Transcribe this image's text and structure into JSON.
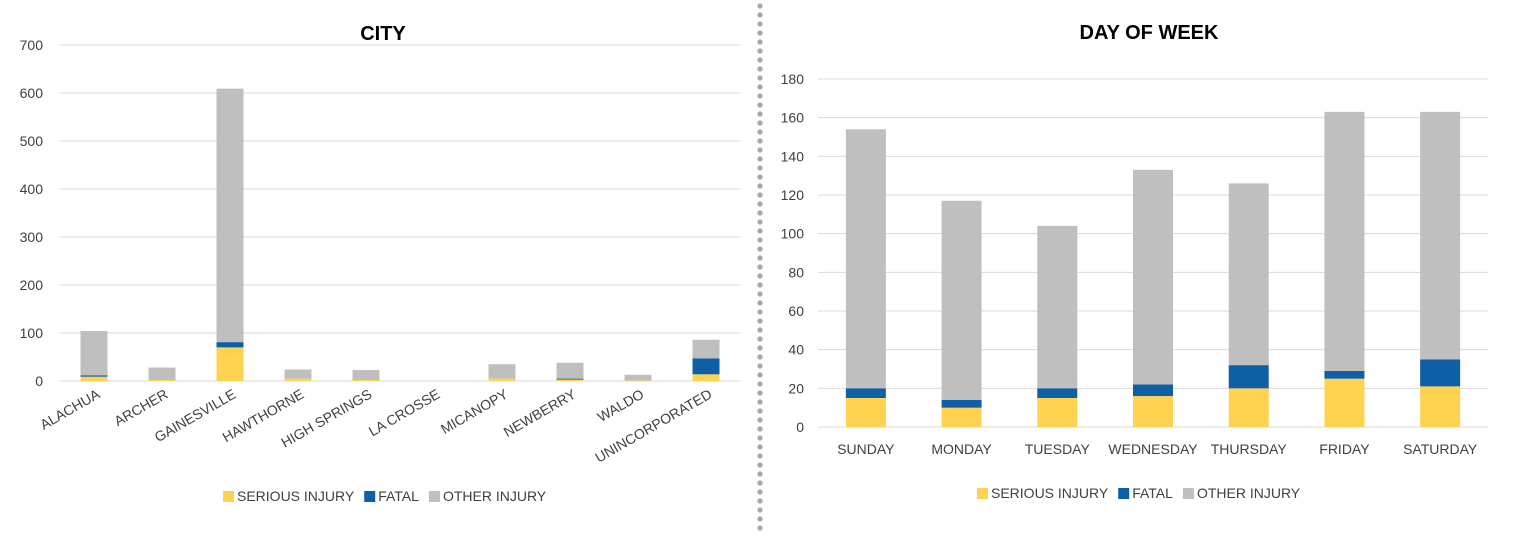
{
  "colors": {
    "serious": "#ffd34f",
    "fatal": "#0e5fa6",
    "other": "#bfbfbf"
  },
  "chart_data": [
    {
      "type": "bar",
      "stacked": true,
      "title": "CITY",
      "categories": [
        "ALACHUA",
        "ARCHER",
        "GAINESVILLE",
        "HAWTHORNE",
        "HIGH SPRINGS",
        "LA CROSSE",
        "MICANOPY",
        "NEWBERRY",
        "WALDO",
        "UNINCORPORATED"
      ],
      "series": [
        {
          "name": "SERIOUS INJURY",
          "values": [
            9,
            2,
            70,
            5,
            2,
            0,
            5,
            3,
            1,
            14
          ]
        },
        {
          "name": "FATAL",
          "values": [
            3,
            0,
            11,
            0,
            0,
            0,
            0,
            2,
            0,
            33
          ]
        },
        {
          "name": "OTHER INJURY",
          "values": [
            92,
            26,
            528,
            19,
            21,
            0,
            30,
            33,
            12,
            39
          ]
        }
      ],
      "ylim": [
        0,
        700
      ],
      "yticks": [
        0,
        100,
        200,
        300,
        400,
        500,
        600,
        700
      ],
      "grid": true,
      "legend": "bottom"
    },
    {
      "type": "bar",
      "stacked": true,
      "title": "DAY OF WEEK",
      "categories": [
        "SUNDAY",
        "MONDAY",
        "TUESDAY",
        "WEDNESDAY",
        "THURSDAY",
        "FRIDAY",
        "SATURDAY"
      ],
      "series": [
        {
          "name": "SERIOUS INJURY",
          "values": [
            15,
            10,
            15,
            16,
            20,
            25,
            21
          ]
        },
        {
          "name": "FATAL",
          "values": [
            5,
            4,
            5,
            6,
            12,
            4,
            14
          ]
        },
        {
          "name": "OTHER INJURY",
          "values": [
            134,
            103,
            84,
            111,
            94,
            134,
            128
          ]
        }
      ],
      "ylim": [
        0,
        180
      ],
      "yticks": [
        0,
        20,
        40,
        60,
        80,
        100,
        120,
        140,
        160,
        180
      ],
      "grid": true,
      "legend": "bottom"
    }
  ]
}
